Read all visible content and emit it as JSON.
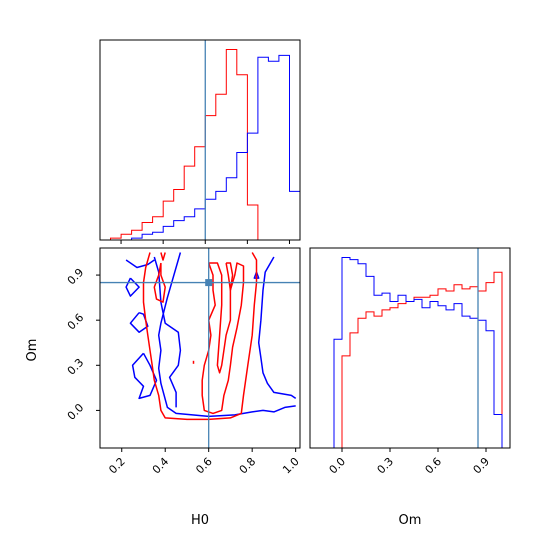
{
  "chart_data": {
    "type": "corner",
    "colors": {
      "series_a": "#ff0000",
      "series_b": "#0000ff",
      "truth": "#4682b4"
    },
    "truths": {
      "H0": 0.6,
      "Om": 0.85
    },
    "axis_labels": {
      "H0": "H0",
      "Om": "Om"
    },
    "panels": [
      {
        "id": "hist-H0",
        "type": "step-histogram",
        "x_range": [
          0.1,
          1.05
        ],
        "x_ticks": [
          0.2,
          0.4,
          0.6,
          0.8,
          1.0
        ],
        "bin_width": 0.05,
        "series": [
          {
            "color": "red",
            "bin_starts": [
              0.1,
              0.15,
              0.2,
              0.25,
              0.3,
              0.35,
              0.4,
              0.45,
              0.5,
              0.55,
              0.6,
              0.65,
              0.7,
              0.75,
              0.8,
              0.85
            ],
            "counts": [
              0,
              0.01,
              0.03,
              0.05,
              0.09,
              0.12,
              0.2,
              0.26,
              0.38,
              0.48,
              0.64,
              0.75,
              0.98,
              0.85,
              0.18,
              0.0
            ]
          },
          {
            "color": "blue",
            "bin_starts": [
              0.1,
              0.15,
              0.2,
              0.25,
              0.3,
              0.35,
              0.4,
              0.45,
              0.5,
              0.55,
              0.6,
              0.65,
              0.7,
              0.75,
              0.8,
              0.85,
              0.9,
              0.95,
              1.0
            ],
            "counts": [
              0,
              0,
              0,
              0.01,
              0.03,
              0.04,
              0.07,
              0.1,
              0.12,
              0.16,
              0.21,
              0.25,
              0.32,
              0.45,
              0.55,
              0.94,
              0.92,
              0.95,
              0.25
            ]
          }
        ]
      },
      {
        "id": "hist-Om",
        "type": "step-histogram",
        "x_range": [
          -0.2,
          1.05
        ],
        "x_ticks": [
          0.0,
          0.3,
          0.6,
          0.9
        ],
        "bin_width": 0.05,
        "series": [
          {
            "color": "red",
            "bin_starts": [
              0.0,
              0.05,
              0.1,
              0.15,
              0.2,
              0.25,
              0.3,
              0.35,
              0.4,
              0.45,
              0.5,
              0.55,
              0.6,
              0.65,
              0.7,
              0.75,
              0.8,
              0.85,
              0.9,
              0.95
            ],
            "counts": [
              0.44,
              0.55,
              0.62,
              0.65,
              0.63,
              0.66,
              0.67,
              0.69,
              0.7,
              0.72,
              0.72,
              0.73,
              0.76,
              0.75,
              0.78,
              0.76,
              0.77,
              0.75,
              0.79,
              0.84
            ]
          },
          {
            "color": "blue",
            "bin_starts": [
              -0.05,
              0.0,
              0.05,
              0.1,
              0.15,
              0.2,
              0.25,
              0.3,
              0.35,
              0.4,
              0.45,
              0.5,
              0.55,
              0.6,
              0.65,
              0.7,
              0.75,
              0.8,
              0.85,
              0.9,
              0.95
            ],
            "counts": [
              0.52,
              0.91,
              0.9,
              0.88,
              0.82,
              0.73,
              0.74,
              0.7,
              0.73,
              0.7,
              0.71,
              0.67,
              0.7,
              0.68,
              0.66,
              0.69,
              0.63,
              0.62,
              0.61,
              0.56,
              0.16
            ]
          }
        ]
      },
      {
        "id": "contour-H0-Om",
        "type": "contour",
        "x_range": [
          0.1,
          1.02
        ],
        "y_range": [
          -0.25,
          1.08
        ],
        "x_ticks": [
          0.2,
          0.4,
          0.6,
          0.8,
          1.0
        ],
        "y_ticks": [
          0.0,
          0.3,
          0.6,
          0.9
        ],
        "series": [
          {
            "color": "blue",
            "contours": [
              [
                [
                  0.47,
                  1.05
                ],
                [
                  0.44,
                  0.9
                ],
                [
                  0.41,
                  0.75
                ],
                [
                  0.38,
                  0.58
                ],
                [
                  0.37,
                  0.5
                ],
                [
                  0.38,
                  0.4
                ],
                [
                  0.37,
                  0.28
                ],
                [
                  0.38,
                  0.18
                ],
                [
                  0.41,
                  0.02
                ],
                [
                  0.45,
                  -0.02
                ],
                [
                  0.6,
                  -0.04
                ],
                [
                  0.72,
                  -0.03
                ],
                [
                  0.8,
                  -0.01
                ],
                [
                  0.85,
                  0.0
                ],
                [
                  0.9,
                  -0.01
                ],
                [
                  0.95,
                  0.02
                ],
                [
                  1.0,
                  0.03
                ]
              ],
              [
                [
                  0.22,
                  1.0
                ],
                [
                  0.27,
                  0.95
                ],
                [
                  0.32,
                  0.97
                ],
                [
                  0.35,
                  1.0
                ]
              ],
              [
                [
                  0.24,
                  0.88
                ],
                [
                  0.28,
                  0.82
                ],
                [
                  0.24,
                  0.76
                ],
                [
                  0.22,
                  0.82
                ],
                [
                  0.24,
                  0.88
                ]
              ],
              [
                [
                  0.28,
                  0.65
                ],
                [
                  0.24,
                  0.58
                ],
                [
                  0.28,
                  0.52
                ],
                [
                  0.32,
                  0.56
                ],
                [
                  0.3,
                  0.64
                ],
                [
                  0.28,
                  0.65
                ]
              ],
              [
                [
                  0.3,
                  0.38
                ],
                [
                  0.25,
                  0.3
                ],
                [
                  0.26,
                  0.22
                ],
                [
                  0.3,
                  0.16
                ],
                [
                  0.28,
                  0.08
                ],
                [
                  0.33,
                  0.1
                ],
                [
                  0.36,
                  0.2
                ],
                [
                  0.33,
                  0.3
                ],
                [
                  0.3,
                  0.38
                ]
              ],
              [
                [
                  0.35,
                  1.02
                ],
                [
                  0.37,
                  0.92
                ],
                [
                  0.38,
                  0.72
                ],
                [
                  0.4,
                  0.58
                ],
                [
                  0.46,
                  0.52
                ],
                [
                  0.47,
                  0.4
                ],
                [
                  0.46,
                  0.3
                ],
                [
                  0.42,
                  0.22
                ],
                [
                  0.45,
                  0.12
                ],
                [
                  0.45,
                  0.02
                ]
              ],
              [
                [
                  0.9,
                  1.02
                ],
                [
                  0.86,
                  0.92
                ],
                [
                  0.85,
                  0.8
                ],
                [
                  0.84,
                  0.6
                ],
                [
                  0.83,
                  0.45
                ],
                [
                  0.84,
                  0.35
                ],
                [
                  0.85,
                  0.25
                ],
                [
                  0.87,
                  0.18
                ],
                [
                  0.9,
                  0.12
                ],
                [
                  0.98,
                  0.1
                ],
                [
                  1.0,
                  0.08
                ]
              ],
              [
                [
                  0.82,
                  0.92
                ],
                [
                  0.83,
                  0.88
                ],
                [
                  0.81,
                  0.88
                ],
                [
                  0.82,
                  0.92
                ]
              ]
            ]
          },
          {
            "color": "red",
            "contours": [
              [
                [
                  0.33,
                  1.05
                ],
                [
                  0.31,
                  0.95
                ],
                [
                  0.3,
                  0.85
                ],
                [
                  0.3,
                  0.72
                ],
                [
                  0.31,
                  0.6
                ],
                [
                  0.32,
                  0.5
                ],
                [
                  0.33,
                  0.4
                ],
                [
                  0.34,
                  0.3
                ],
                [
                  0.35,
                  0.2
                ],
                [
                  0.37,
                  0.1
                ],
                [
                  0.38,
                  0.0
                ],
                [
                  0.4,
                  -0.05
                ],
                [
                  0.5,
                  -0.06
                ],
                [
                  0.6,
                  -0.06
                ],
                [
                  0.7,
                  -0.05
                ],
                [
                  0.75,
                  -0.02
                ],
                [
                  0.76,
                  0.1
                ],
                [
                  0.78,
                  0.3
                ],
                [
                  0.8,
                  0.5
                ],
                [
                  0.81,
                  0.7
                ],
                [
                  0.82,
                  0.85
                ],
                [
                  0.82,
                  1.0
                ],
                [
                  0.8,
                  1.05
                ]
              ],
              [
                [
                  0.38,
                  0.98
                ],
                [
                  0.38,
                  0.9
                ],
                [
                  0.4,
                  0.82
                ],
                [
                  0.39,
                  0.72
                ],
                [
                  0.36,
                  0.74
                ],
                [
                  0.35,
                  0.82
                ],
                [
                  0.37,
                  0.9
                ],
                [
                  0.38,
                  0.98
                ]
              ],
              [
                [
                  0.6,
                  0.98
                ],
                [
                  0.62,
                  0.9
                ],
                [
                  0.62,
                  0.8
                ],
                [
                  0.63,
                  0.7
                ],
                [
                  0.6,
                  0.6
                ],
                [
                  0.61,
                  0.5
                ],
                [
                  0.6,
                  0.4
                ],
                [
                  0.58,
                  0.3
                ],
                [
                  0.57,
                  0.2
                ],
                [
                  0.57,
                  0.1
                ],
                [
                  0.58,
                  0.0
                ],
                [
                  0.62,
                  -0.02
                ],
                [
                  0.66,
                  0.0
                ],
                [
                  0.67,
                  0.1
                ],
                [
                  0.69,
                  0.2
                ],
                [
                  0.7,
                  0.3
                ],
                [
                  0.71,
                  0.42
                ],
                [
                  0.73,
                  0.55
                ],
                [
                  0.75,
                  0.7
                ],
                [
                  0.76,
                  0.85
                ],
                [
                  0.76,
                  0.96
                ],
                [
                  0.73,
                  0.98
                ],
                [
                  0.72,
                  0.9
                ],
                [
                  0.7,
                  0.8
                ],
                [
                  0.7,
                  0.6
                ],
                [
                  0.68,
                  0.5
                ],
                [
                  0.67,
                  0.4
                ],
                [
                  0.66,
                  0.3
                ],
                [
                  0.65,
                  0.25
                ],
                [
                  0.64,
                  0.3
                ],
                [
                  0.65,
                  0.5
                ],
                [
                  0.66,
                  0.7
                ],
                [
                  0.66,
                  0.9
                ],
                [
                  0.64,
                  0.98
                ],
                [
                  0.6,
                  0.98
                ]
              ],
              [
                [
                  0.68,
                  0.98
                ],
                [
                  0.69,
                  0.9
                ],
                [
                  0.7,
                  0.8
                ],
                [
                  0.71,
                  0.9
                ],
                [
                  0.7,
                  0.98
                ],
                [
                  0.68,
                  0.98
                ]
              ],
              [
                [
                  0.53,
                  0.33
                ],
                [
                  0.53,
                  0.31
                ]
              ],
              [
                [
                  0.38,
                  1.05
                ],
                [
                  0.39,
                  1.0
                ],
                [
                  0.4,
                  1.05
                ]
              ]
            ]
          }
        ]
      }
    ]
  }
}
